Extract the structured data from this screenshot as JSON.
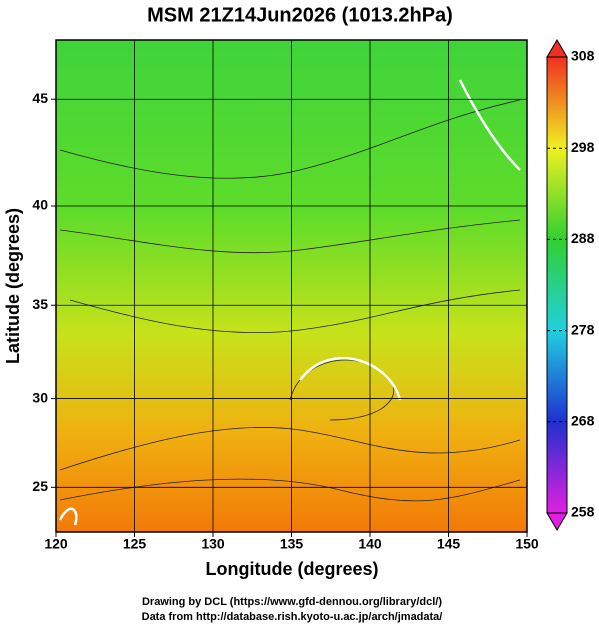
{
  "title": "MSM 21Z14Jun2026 (1013.2hPa)",
  "map": {
    "x_axis": {
      "label": "Longitude (degrees)",
      "xlim": [
        120,
        150
      ],
      "ticks": [
        120,
        125,
        130,
        135,
        140,
        145,
        150
      ]
    },
    "y_axis": {
      "label": "Latitude  (degrees)",
      "ylim": [
        22.4,
        47.6
      ],
      "ticks": [
        25,
        30,
        35,
        40,
        45
      ]
    },
    "grid": true
  },
  "colorbar": {
    "clim": [
      258,
      308
    ],
    "ticks": [
      258,
      268,
      278,
      288,
      298,
      308
    ]
  },
  "credits": [
    "Drawing by DCL (https://www.gfd-dennou.org/library/dcl/)",
    "Data from http://database.rish.kyoto-u.ac.jp/arch/jmadata/"
  ]
}
